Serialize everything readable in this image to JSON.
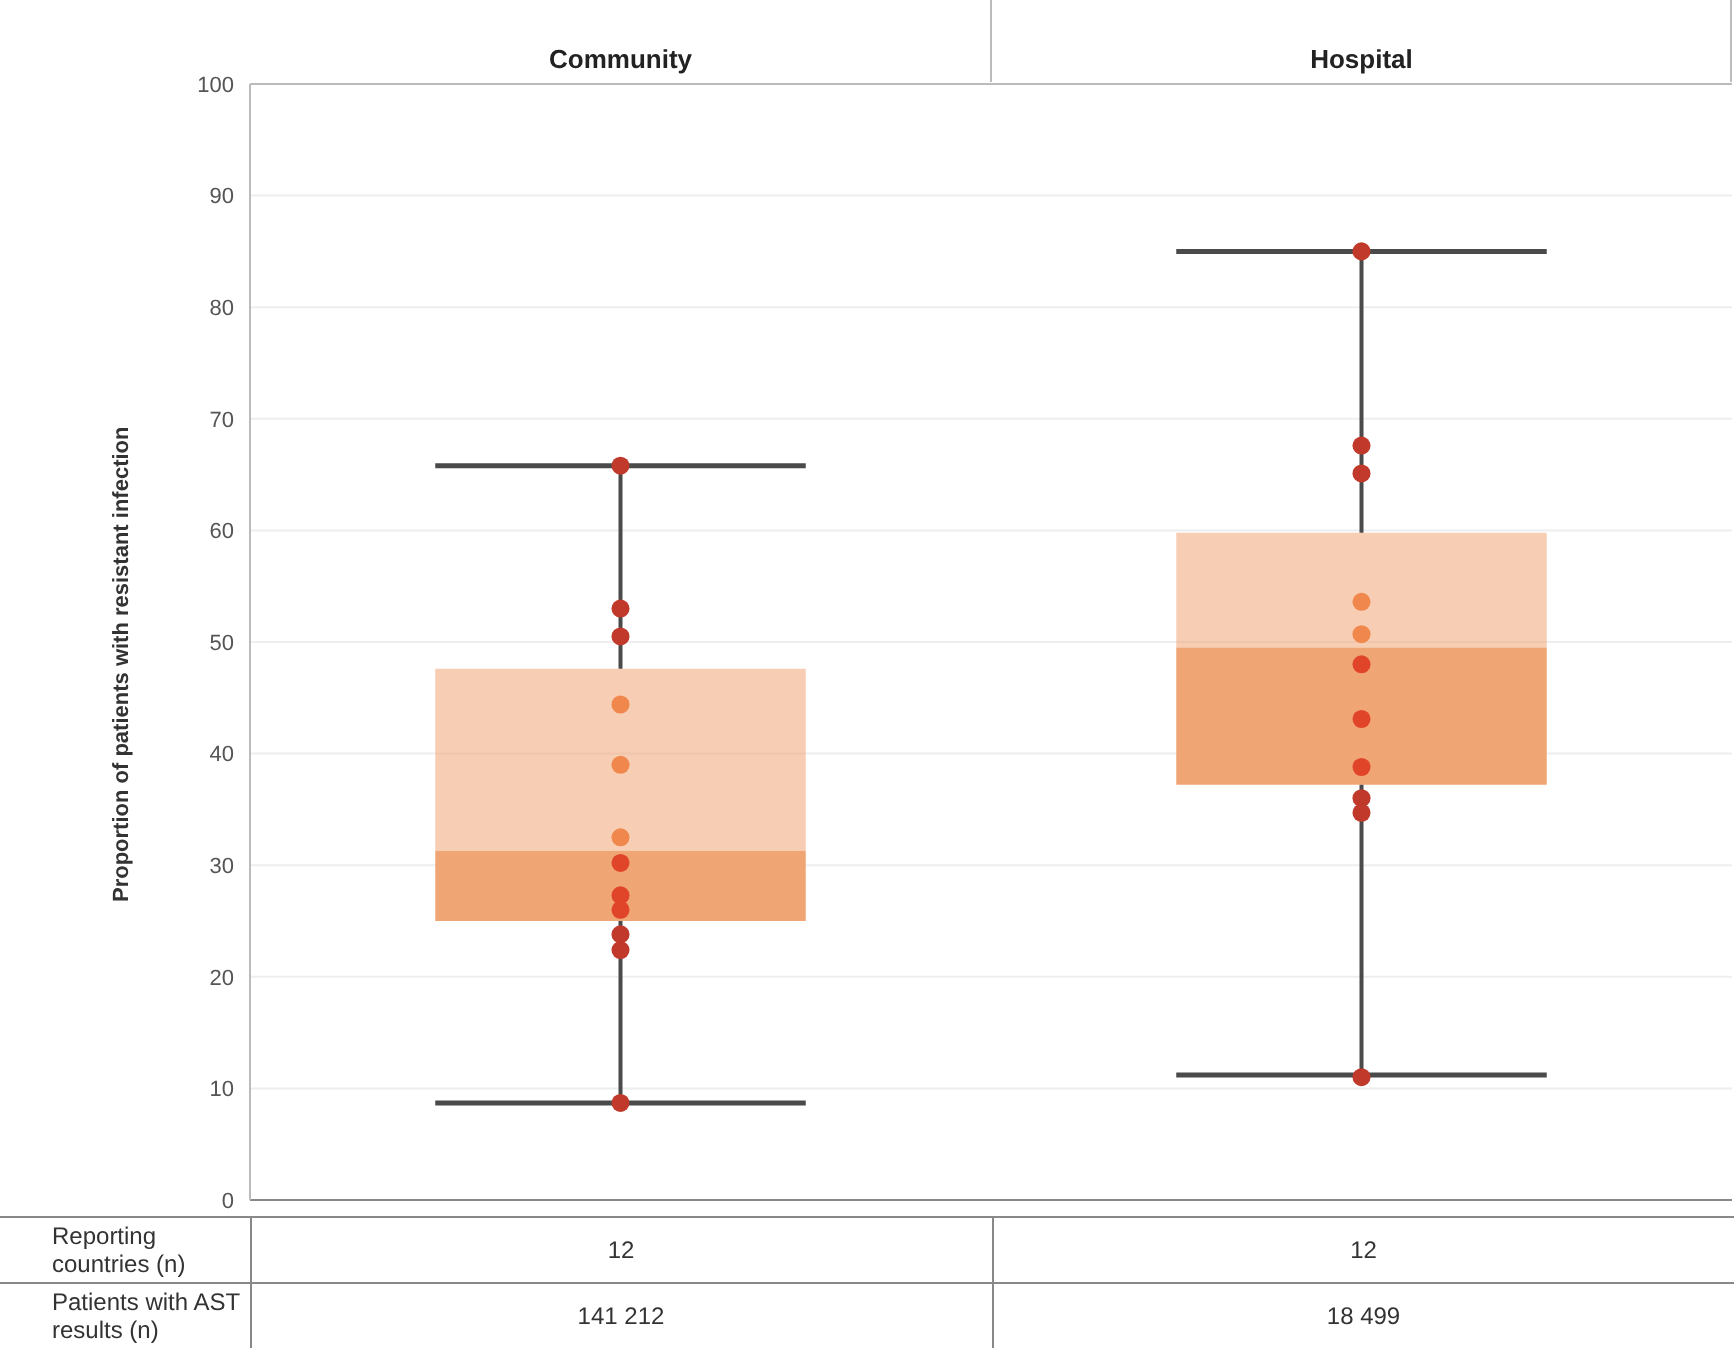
{
  "chart_data": {
    "type": "box",
    "categories": [
      "Community",
      "Hospital"
    ],
    "ylabel": "Proportion of patients with resistant infection",
    "ylim": [
      0,
      100
    ],
    "yticks": [
      0,
      10,
      20,
      30,
      40,
      50,
      60,
      70,
      80,
      90,
      100
    ],
    "grid": "y",
    "series": [
      {
        "type": "box",
        "color": "#f0a575",
        "boxes": [
          {
            "low": 8.7,
            "q1": 25,
            "median": 31.3,
            "q3": 47.6,
            "high": 65.8
          },
          {
            "low": 11.2,
            "q1": 37.2,
            "median": 49.5,
            "q3": 59.8,
            "high": 85
          }
        ]
      },
      {
        "type": "scatter",
        "x": [
          "Community",
          "Community",
          "Community",
          "Community",
          "Community",
          "Community",
          "Community",
          "Community",
          "Community",
          "Community",
          "Community",
          "Community",
          "Hospital",
          "Hospital",
          "Hospital",
          "Hospital",
          "Hospital",
          "Hospital",
          "Hospital",
          "Hospital",
          "Hospital",
          "Hospital",
          "Hospital"
        ],
        "values": [
          65.8,
          53,
          50.5,
          44.4,
          39,
          32.5,
          30.2,
          27.3,
          26,
          23.8,
          22.4,
          8.7,
          85,
          67.6,
          65.1,
          53.6,
          50.7,
          48,
          43.1,
          38.8,
          36,
          34.7,
          11
        ],
        "colors": [
          "#c0392b",
          "#c0392b",
          "#c0392b",
          "#f0884e",
          "#f0884e",
          "#f0884e",
          "#e0452a",
          "#e0452a",
          "#e0452a",
          "#c0392b",
          "#c0392b",
          "#c0392b",
          "#c0392b",
          "#c0392b",
          "#c0392b",
          "#f0884e",
          "#f0884e",
          "#e0452a",
          "#e0452a",
          "#e0452a",
          "#c0392b",
          "#c0392b",
          "#c0392b"
        ]
      }
    ],
    "annotations": [
      "Reporting countries (n)",
      "12",
      "12",
      "Patients with AST results (n)",
      "141 212",
      "18 499"
    ]
  }
}
